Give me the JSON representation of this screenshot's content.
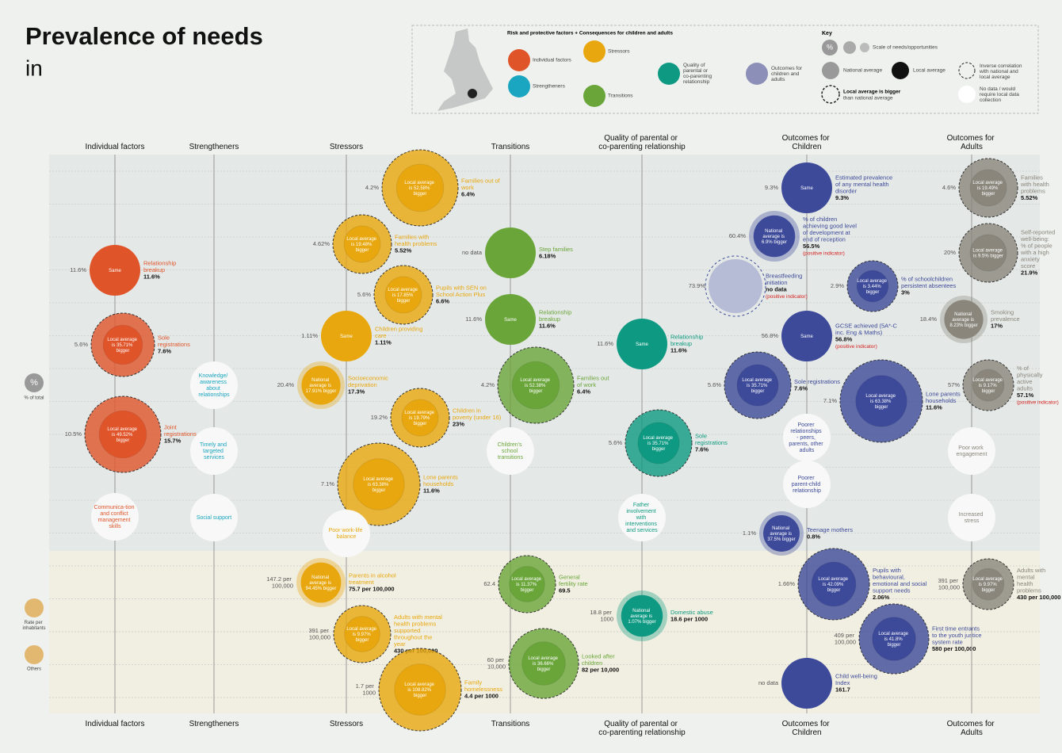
{
  "header": {
    "title": "Prevalence of needs",
    "subtitle": "in"
  },
  "key": {
    "intro": "Risk and protective factors + Consequences for children and adults",
    "individual": "Individual factors",
    "strengtheners": "Strengtheners",
    "stressors": "Stressors",
    "transitions": "Transitions",
    "quality": "Quality of parental or co-parenting relationship",
    "outcomes": "Outcomes for children and adults",
    "title": "Key",
    "percent": "%",
    "scale": "Scale of needs/opportunities",
    "national": "National average",
    "local": "Local average",
    "inverse": "Inverse correlation with national and local average",
    "bigger": "Local average is bigger",
    "bigger_note": "than national average",
    "nodata": "No data / would require local data collection"
  },
  "side": {
    "percent": "%",
    "percent_label": "% of total",
    "rate": "Rate per inhabitants",
    "others": "Others"
  },
  "columns": [
    {
      "label": "Individual factors",
      "color": "#e0542a",
      "bubbles": [
        {
          "inner": "Same",
          "left": "11.6%",
          "name": "Relationship breakup",
          "value": "11.6%"
        },
        {
          "inner": "Local average is 35.71% bigger",
          "left": "5.6%",
          "name": "Sole registrations",
          "value": "7.6%"
        },
        {
          "inner": "Local average is 49.52% bigger",
          "left": "10.5%",
          "name": "Joint registrations",
          "value": "15.7%"
        },
        {
          "label": "Communica-tion and conflict management skills"
        }
      ]
    },
    {
      "label": "Strengtheners",
      "color": "#1aa5c0",
      "bubbles": [
        {
          "label": "Knowledge/ awareness about relationships"
        },
        {
          "label": "Timely and targeted services"
        },
        {
          "label": "Social support"
        }
      ]
    },
    {
      "label": "Stressors",
      "color": "#e8a70e",
      "bubbles": [
        {
          "inner": "Local average is 52.58% bigger",
          "left": "4.2%",
          "name": "Families out of work",
          "value": "6.4%"
        },
        {
          "inner": "Local average is 19.48% bigger",
          "left": "4.62%",
          "name": "Families with health problems",
          "value": "5.52%"
        },
        {
          "inner": "Local average is 17.85% bigger",
          "left": "5.6%",
          "name": "Pupils with SEN on School Action Plus",
          "value": "6.6%"
        },
        {
          "inner": "Same",
          "left": "1.11%",
          "name": "Children providing care",
          "value": "1.11%"
        },
        {
          "inner": "National average is 17.91% bigger",
          "left": "20.4%",
          "name": "Socioeconomic deprivation",
          "value": "17.3%"
        },
        {
          "inner": "Local average is 19.79% bigger",
          "left": "19.2%",
          "name": "Children in poverty (under 16)",
          "value": "23%"
        },
        {
          "inner": "Local average is 63.38% bigger",
          "left": "7.1%",
          "name": "Lone parents households",
          "value": "11.6%"
        },
        {
          "label": "Poor work-life balance"
        },
        {
          "inner": "National average is 94.45% bigger",
          "left": "147.2 per 100,000",
          "name": "Parents in alcohol treatment",
          "value": "75.7 per 100,000"
        },
        {
          "inner": "Local average is 9.97% bigger",
          "left": "391 per 100,000",
          "name": "Adults with mental health problems supported throughout the year",
          "value": "430 per 100,000"
        },
        {
          "inner": "Local average is 108.82% bigger",
          "left": "1.7 per 1000",
          "name": "Family homelessness",
          "value": "4.4 per 1000"
        }
      ]
    },
    {
      "label": "Transitions",
      "color": "#6aa53a",
      "bubbles": [
        {
          "left": "no data",
          "name": "Step families",
          "value": "6.18%"
        },
        {
          "inner": "Same",
          "left": "11.6%",
          "name": "Relationship breakup",
          "value": "11.6%"
        },
        {
          "inner": "Local average is 52.38% bigger",
          "left": "4.2%",
          "name": "Families out of work",
          "value": "6.4%"
        },
        {
          "label": "Children's school transitions"
        },
        {
          "inner": "Local average is 11.37% bigger",
          "left": "62.4",
          "name": "General fertility rate",
          "value": "69.5"
        },
        {
          "inner": "Local average is 36.66% bigger",
          "left": "60 per 10,000",
          "name": "Looked after children",
          "value": "82 per 10,000"
        }
      ]
    },
    {
      "label": "Quality of parental or co-parenting relationship",
      "color": "#0e9a82",
      "bubbles": [
        {
          "inner": "Same",
          "left": "11.6%",
          "name": "Relationship breakup",
          "value": "11.6%"
        },
        {
          "inner": "Local average is 35.71% bigger",
          "left": "5.6%",
          "name": "Sole registrations",
          "value": "7.6%"
        },
        {
          "label": "Father involvement with interventions and services"
        },
        {
          "inner": "National average is 1.07% bigger",
          "left": "18.8 per 1000",
          "name": "Domestic abuse",
          "value": "18.6 per 1000"
        }
      ]
    },
    {
      "label": "Outcomes for Children",
      "color": "#3d4a9a",
      "bubbles": [
        {
          "inner": "Same",
          "left": "9.3%",
          "name": "Estimated prevalence of any mental health disorder",
          "value": "9.3%"
        },
        {
          "inner": "National average is 6.9% bigger",
          "left": "60.4%",
          "name": "% of children achieving good level of development at end of reception",
          "value": "56.5%",
          "note": "(positive indicator)"
        },
        {
          "left": "73.9%",
          "name": "Breastfeeding initiation",
          "value": "no data",
          "note": "(positive indicator)"
        },
        {
          "inner": "Local average is 3.44% bigger",
          "left": "2.9%",
          "name": "% of schoolchildren persistent absentees",
          "value": "3%"
        },
        {
          "inner": "Same",
          "left": "56.8%",
          "name": "GCSE achieved (5A*-C inc. Eng & Maths)",
          "value": "56.8%",
          "note": "(positive indicator)"
        },
        {
          "inner": "Local average is 35.71% bigger",
          "left": "5.6%",
          "name": "Sole registrations",
          "value": "7.6%"
        },
        {
          "inner": "Local average is 63.38% bigger",
          "left": "7.1%",
          "name": "Lone parents households",
          "value": "11.6%"
        },
        {
          "label": "Poorer relationships - peers, parents, other adults"
        },
        {
          "label": "Poorer parent-child relationship"
        },
        {
          "inner": "National average is 37.5% bigger",
          "left": "1.1%",
          "name": "Teenage mothers",
          "value": "0.8%"
        },
        {
          "inner": "Local average is 42.09% bigger",
          "left": "1.66%",
          "name": "Pupils with behavioural, emotional and social support needs",
          "value": "2.06%"
        },
        {
          "inner": "Local average is 41.8% bigger",
          "left": "409 per 100,000",
          "name": "First time entrants to the youth justice system rate",
          "value": "580 per 100,000"
        },
        {
          "left": "no data",
          "name": "Child well-being Index",
          "value": "161.7"
        }
      ]
    },
    {
      "label": "Outcomes for Adults",
      "color": "#8a867c",
      "bubbles": [
        {
          "inner": "Local average is 19.49% bigger",
          "left": "4.6%",
          "name": "Families with health problems",
          "value": "5.52%"
        },
        {
          "inner": "Local average is 9.5% bigger",
          "left": "20%",
          "name": "Self-reported well-being: % of people with a high anxiety score",
          "value": "21.9%"
        },
        {
          "inner": "National average is 8.23% bigger",
          "left": "18.4%",
          "name": "Smoking prevalence",
          "value": "17%"
        },
        {
          "inner": "Local average is 9.17% bigger",
          "left": "57%",
          "name": "% of physically active adults",
          "value": "57.1%",
          "note": "(positive indicator)"
        },
        {
          "label": "Poor work engagement"
        },
        {
          "label": "Increased stress"
        },
        {
          "inner": "Local average is 9.97% bigger",
          "left": "391 per 100,000",
          "name": "Adults with mental health problems",
          "value": "430 per 100,000"
        }
      ]
    }
  ]
}
